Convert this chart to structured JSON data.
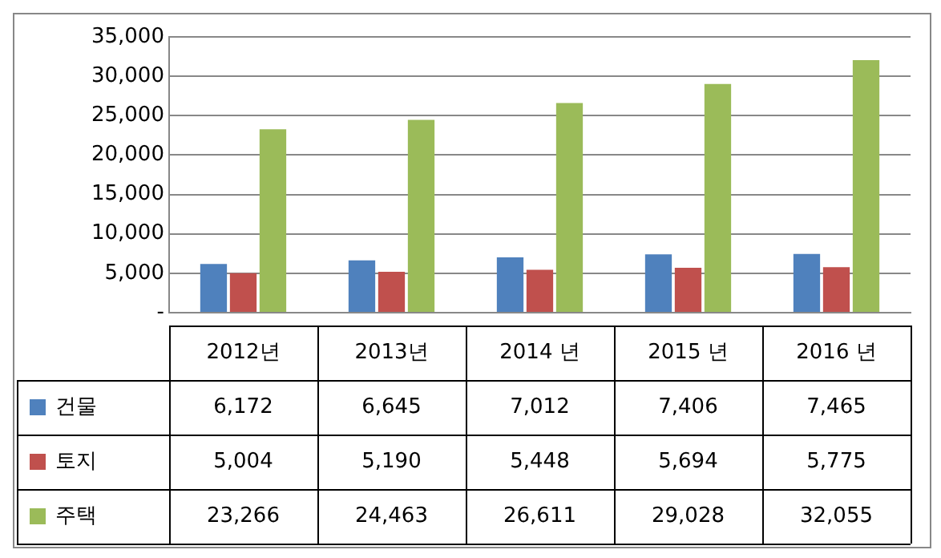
{
  "chart_data": {
    "type": "bar",
    "categories": [
      "2012년",
      "2013년",
      "2014 년",
      "2015 년",
      "2016 년"
    ],
    "series": [
      {
        "name": "건물",
        "color": "#4f81bd",
        "values": [
          6172,
          6645,
          7012,
          7406,
          7465
        ],
        "value_labels": [
          "6,172",
          "6,645",
          "7,012",
          "7,406",
          "7,465"
        ]
      },
      {
        "name": "토지",
        "color": "#c0504d",
        "values": [
          5004,
          5190,
          5448,
          5694,
          5775
        ],
        "value_labels": [
          "5,004",
          "5,190",
          "5,448",
          "5,694",
          "5,775"
        ]
      },
      {
        "name": "주택",
        "color": "#9bbb59",
        "values": [
          23266,
          24463,
          26611,
          29028,
          32055
        ],
        "value_labels": [
          "23,266",
          "24,463",
          "26,611",
          "29,028",
          "32,055"
        ]
      }
    ],
    "ylim": [
      0,
      35000
    ],
    "yticks": [
      {
        "value": 0,
        "label": "-"
      },
      {
        "value": 5000,
        "label": "5,000"
      },
      {
        "value": 10000,
        "label": "10,000"
      },
      {
        "value": 15000,
        "label": "15,000"
      },
      {
        "value": 20000,
        "label": "20,000"
      },
      {
        "value": 25000,
        "label": "25,000"
      },
      {
        "value": 30000,
        "label": "30,000"
      },
      {
        "value": 35000,
        "label": "35,000"
      }
    ],
    "grid": "y",
    "legend": "bottom"
  }
}
